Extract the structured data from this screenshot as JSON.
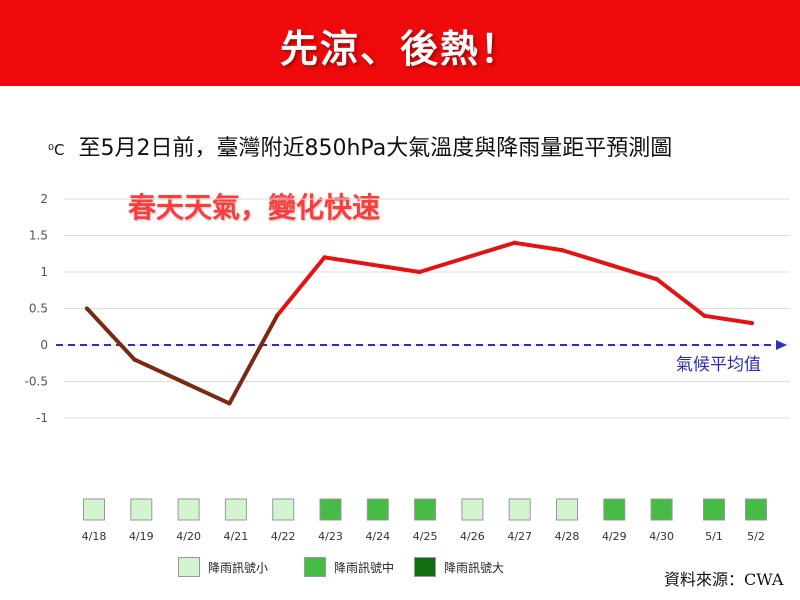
{
  "banner": {
    "title": "先涼、後熱！"
  },
  "chart_data": {
    "type": "line",
    "title": "至5月2日前，臺灣附近850hPa大氣溫度與降雨量距平預測圖",
    "unit": "⁰C",
    "subtitle": "春天天氣，變化快速",
    "categories": [
      "4/18",
      "4/19",
      "4/20",
      "4/21",
      "4/22",
      "4/23",
      "4/24",
      "4/25",
      "4/26",
      "4/27",
      "4/28",
      "4/29",
      "4/30",
      "5/1",
      "5/2"
    ],
    "series": [
      {
        "values": [
          0.5,
          -0.2,
          -0.5,
          -0.8,
          0.4,
          1.2,
          1.1,
          1.0,
          1.2,
          1.4,
          1.3,
          1.1,
          0.9,
          0.4,
          0.3
        ]
      }
    ],
    "line_colors": {
      "below_or_cool": "#7a2a14",
      "warm": "#e51212"
    },
    "ylim": [
      -1,
      2
    ],
    "yticks": [
      "2",
      "1.5",
      "1",
      "0.5",
      "0",
      "-0.5",
      "-1"
    ],
    "ytick_values": [
      2,
      1.5,
      1,
      0.5,
      0,
      -0.5,
      -1
    ],
    "grid": true,
    "reference_line": {
      "value": 0,
      "label": "氣候平均值",
      "color": "#3030c0"
    },
    "rain_signal": [
      "小",
      "小",
      "小",
      "小",
      "小",
      "中",
      "中",
      "中",
      "小",
      "小",
      "小",
      "中",
      "中",
      "中",
      "中"
    ],
    "rain_colors": {
      "小": "#d2f5cf",
      "中": "#46bb46",
      "大": "#0f6e0f"
    },
    "legend": [
      {
        "level": "小",
        "label": "降雨訊號小"
      },
      {
        "level": "中",
        "label": "降雨訊號中"
      },
      {
        "level": "大",
        "label": "降雨訊號大"
      }
    ]
  },
  "source": "資料來源：CWA"
}
